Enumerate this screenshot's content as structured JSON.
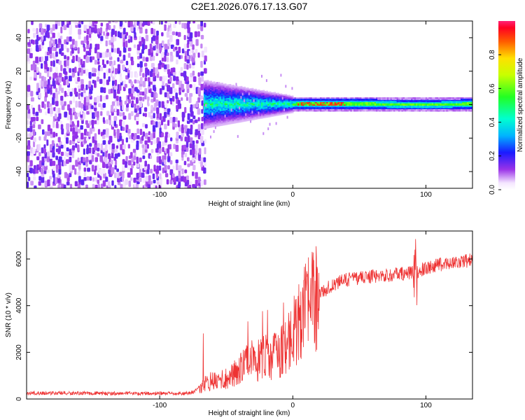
{
  "figure_title": "C2E1.2026.076.17.13.G07",
  "chart_data": [
    {
      "type": "heatmap",
      "title": "C2E1.2026.076.17.13.G07",
      "xlabel": "Height of straight line (km)",
      "ylabel": "Frequency (Hz)",
      "xlim": [
        -200,
        135
      ],
      "ylim": [
        -50,
        50
      ],
      "xticks": [
        -100,
        0,
        100
      ],
      "yticks": [
        -40,
        -20,
        0,
        20,
        40
      ],
      "colorbar": {
        "label": "Normalized spectral amplitude",
        "range": [
          0,
          1
        ],
        "ticks": [
          0.0,
          0.2,
          0.4,
          0.6,
          0.8
        ],
        "colormap": "rainbow (violet to red)"
      },
      "regions": [
        {
          "name": "noise",
          "x_range": [
            -200,
            -67
          ],
          "freq_range": [
            -50,
            50
          ],
          "amplitude_range": [
            0.0,
            0.15
          ]
        },
        {
          "name": "signal onset",
          "x_range": [
            -67,
            0
          ],
          "center_freq": 0,
          "halfwidth_hz": [
            9,
            3
          ],
          "amplitude_range": [
            0.1,
            0.5
          ]
        },
        {
          "name": "strong tone",
          "x_range": [
            0,
            135
          ],
          "center_freq": 0,
          "halfwidth_hz": 4,
          "amplitude_range": [
            0.4,
            0.95
          ]
        }
      ]
    },
    {
      "type": "line",
      "xlabel": "Height of straight line (km)",
      "ylabel": "SNR (10 * v/v)",
      "xlim": [
        -200,
        135
      ],
      "ylim": [
        0,
        7200
      ],
      "xticks": [
        -100,
        0,
        100
      ],
      "yticks": [
        0,
        2000,
        4000,
        6000
      ],
      "series": [
        {
          "name": "SNR",
          "color": "#ee3333",
          "x": [
            -200,
            -180,
            -160,
            -140,
            -120,
            -100,
            -90,
            -80,
            -75,
            -70,
            -65,
            -60,
            -55,
            -50,
            -45,
            -40,
            -35,
            -30,
            -25,
            -20,
            -15,
            -10,
            -5,
            0,
            5,
            10,
            15,
            20,
            25,
            30,
            35,
            40,
            50,
            60,
            70,
            80,
            88,
            92,
            95,
            100,
            110,
            120,
            135
          ],
          "values": [
            260,
            250,
            250,
            240,
            240,
            235,
            235,
            240,
            300,
            500,
            700,
            800,
            750,
            900,
            1100,
            1300,
            1500,
            1500,
            1700,
            1800,
            1800,
            1900,
            2300,
            2800,
            3300,
            3800,
            4200,
            4500,
            4700,
            4900,
            5000,
            5100,
            5200,
            5250,
            5300,
            5350,
            5400,
            5450,
            5500,
            5600,
            5750,
            5850,
            5950
          ]
        }
      ],
      "annotations": [
        {
          "x": 92,
          "y_max": 7100,
          "y_min": 4000,
          "note": "spike"
        }
      ]
    }
  ],
  "colors": {
    "line": "#ee3333",
    "axis": "#000000"
  }
}
